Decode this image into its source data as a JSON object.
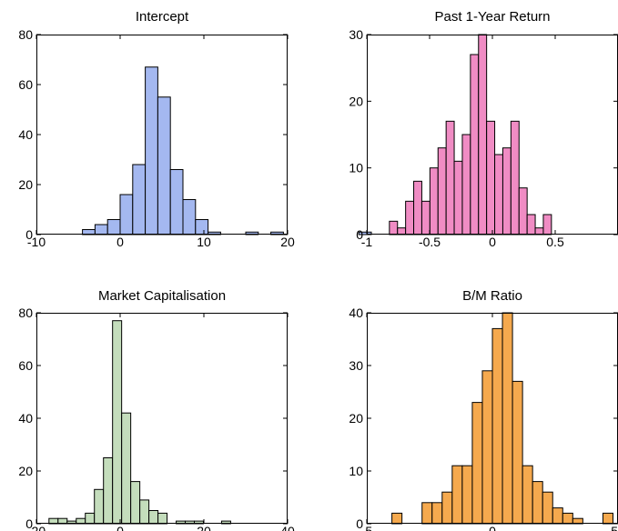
{
  "chart_data": [
    {
      "type": "bar",
      "title": "Intercept",
      "color": "#a4b8f0",
      "bin_start": -6,
      "bin_width": 1.5,
      "values": [
        0,
        2,
        4,
        6,
        16,
        28,
        67,
        55,
        26,
        14,
        6,
        1,
        0,
        0,
        1,
        0,
        1,
        0,
        0,
        0,
        0,
        0,
        0,
        1
      ],
      "xlim": [
        -10,
        20
      ],
      "ylim": [
        0,
        80
      ],
      "xticks": [
        -10,
        0,
        10,
        20
      ],
      "xtick_labels": [
        "-10",
        "0",
        "10",
        "20"
      ],
      "yticks": [
        0,
        20,
        40,
        60,
        80
      ],
      "ytick_labels": [
        "0",
        "20",
        "40",
        "60",
        "80"
      ]
    },
    {
      "type": "bar",
      "title": "Past 1-Year Return",
      "color": "#f08cc4",
      "bin_start": -0.82,
      "bin_width": 0.0645,
      "values": [
        2,
        1,
        5,
        8,
        5,
        10,
        13,
        17,
        11,
        15,
        27,
        30,
        17,
        12,
        13,
        17,
        7,
        3,
        1,
        3
      ],
      "xlim": [
        -1,
        1
      ],
      "ylim": [
        0,
        30
      ],
      "xticks": [
        -1,
        -0.5,
        0,
        0.5,
        1
      ],
      "xtick_labels": [
        "-1",
        "-0.5",
        "0",
        "0.5",
        ""
      ],
      "yticks": [
        0,
        10,
        20,
        30
      ],
      "ytick_labels": [
        "0",
        "10",
        "20",
        "30"
      ]
    },
    {
      "type": "bar",
      "title": "Market Capitalisation",
      "color": "#c4ddbc",
      "bin_start": -17,
      "bin_width": 2.17,
      "values": [
        2,
        2,
        1,
        2,
        4,
        13,
        25,
        77,
        42,
        16,
        9,
        5,
        4,
        0,
        1,
        1,
        1,
        0,
        0,
        1
      ],
      "xlim": [
        -20,
        40
      ],
      "ylim": [
        0,
        80
      ],
      "xticks": [
        -20,
        0,
        20,
        40
      ],
      "xtick_labels": [
        "-20",
        "0",
        "20",
        "40"
      ],
      "yticks": [
        0,
        20,
        40,
        60,
        80
      ],
      "ytick_labels": [
        "0",
        "20",
        "40",
        "60",
        "80"
      ]
    },
    {
      "type": "bar",
      "title": "B/M Ratio",
      "color": "#f5a94e",
      "bin_start": -4.0,
      "bin_width": 0.4,
      "values": [
        2,
        0,
        0,
        4,
        4,
        6,
        11,
        11,
        23,
        29,
        37,
        40,
        27,
        11,
        8,
        6,
        3,
        2,
        1,
        0,
        0,
        2
      ],
      "xlim": [
        -5,
        5
      ],
      "ylim": [
        0,
        40
      ],
      "xticks": [
        -5,
        0,
        5
      ],
      "xtick_labels": [
        "-5",
        "0",
        "5"
      ],
      "yticks": [
        0,
        10,
        20,
        30,
        40
      ],
      "ytick_labels": [
        "0",
        "10",
        "20",
        "30",
        "40"
      ]
    }
  ]
}
